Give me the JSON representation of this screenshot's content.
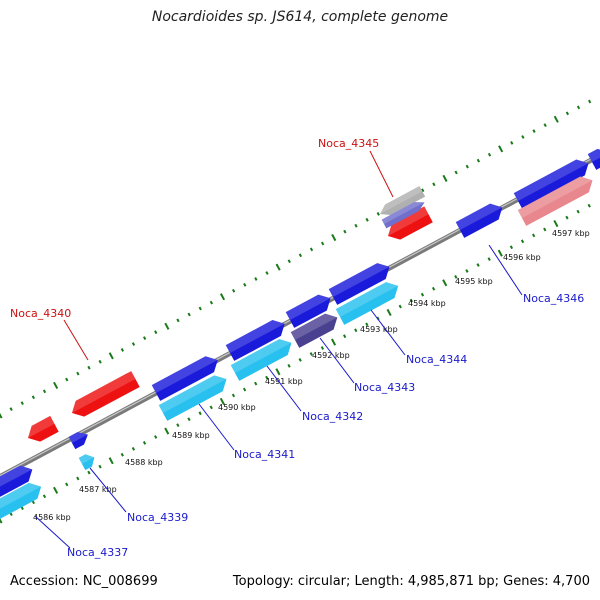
{
  "map": {
    "title": "Nocardioides sp. JS614, complete genome",
    "accession": "Accession: NC_008699",
    "summary": "Topology: circular; Length: 4,985,871 bp; Genes: 4,700"
  },
  "colors": {
    "backbone": "#8a8a8a",
    "tick": "#1a7a1a",
    "forward_gene": "#1a1adb",
    "forward_gene_alt": "#4a4090",
    "forward_gene_light": "#28c0ee",
    "forward_gene_pale": "#e8888e",
    "reverse_gene": "#ee1111",
    "reverse_gene_grey": "#b0b0b0",
    "reverse_gene_violet": "#7070cc",
    "label_forward": "#1a1acc",
    "label_reverse": "#cc1111"
  },
  "scale_labels": [
    "4586 kbp",
    "4587 kbp",
    "4588 kbp",
    "4589 kbp",
    "4590 kbp",
    "4591 kbp",
    "4592 kbp",
    "4593 kbp",
    "4594 kbp",
    "4595 kbp",
    "4596 kbp",
    "4597 kbp"
  ],
  "gene_labels": [
    {
      "name": "Noca_4337",
      "strand": "forward"
    },
    {
      "name": "Noca_4339",
      "strand": "forward"
    },
    {
      "name": "Noca_4340",
      "strand": "reverse"
    },
    {
      "name": "Noca_4341",
      "strand": "forward"
    },
    {
      "name": "Noca_4342",
      "strand": "forward"
    },
    {
      "name": "Noca_4343",
      "strand": "forward"
    },
    {
      "name": "Noca_4344",
      "strand": "forward"
    },
    {
      "name": "Noca_4345",
      "strand": "reverse"
    },
    {
      "name": "Noca_4346",
      "strand": "forward"
    }
  ]
}
